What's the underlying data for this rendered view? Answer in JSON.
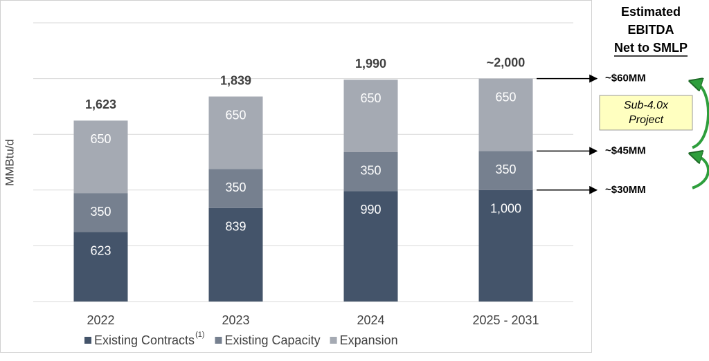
{
  "chart_data": {
    "type": "stacked_bar",
    "y_label": "MMBtu/d",
    "categories": [
      "2022",
      "2023",
      "2024",
      "2025 - 2031"
    ],
    "series": [
      {
        "name": "Existing Contracts",
        "name_superscript": "(1)",
        "color": "#44546a",
        "values": [
          623,
          839,
          990,
          1000
        ],
        "value_labels": [
          "623",
          "839",
          "990",
          "1,000"
        ]
      },
      {
        "name": "Existing Capacity",
        "color": "#76808f",
        "values": [
          350,
          350,
          350,
          350
        ]
      },
      {
        "name": "Expansion",
        "color": "#a5aab3",
        "values": [
          650,
          650,
          650,
          650
        ]
      }
    ],
    "totals": [
      1623,
      1839,
      1990,
      2000
    ],
    "total_labels": [
      "1,623",
      "1,839",
      "1,990",
      "~2,000"
    ],
    "ylim": [
      0,
      2500
    ],
    "yticks": [
      0,
      500,
      1000,
      1500,
      2000,
      2500
    ],
    "grid": true,
    "legend": "bottom",
    "annotations": {
      "header": [
        "Estimated",
        "EBITDA",
        "Net to SMLP"
      ],
      "levels": [
        "~$60MM",
        "~$45MM",
        "~$30MM"
      ],
      "box": [
        "Sub-4.0x",
        "Project"
      ]
    }
  }
}
